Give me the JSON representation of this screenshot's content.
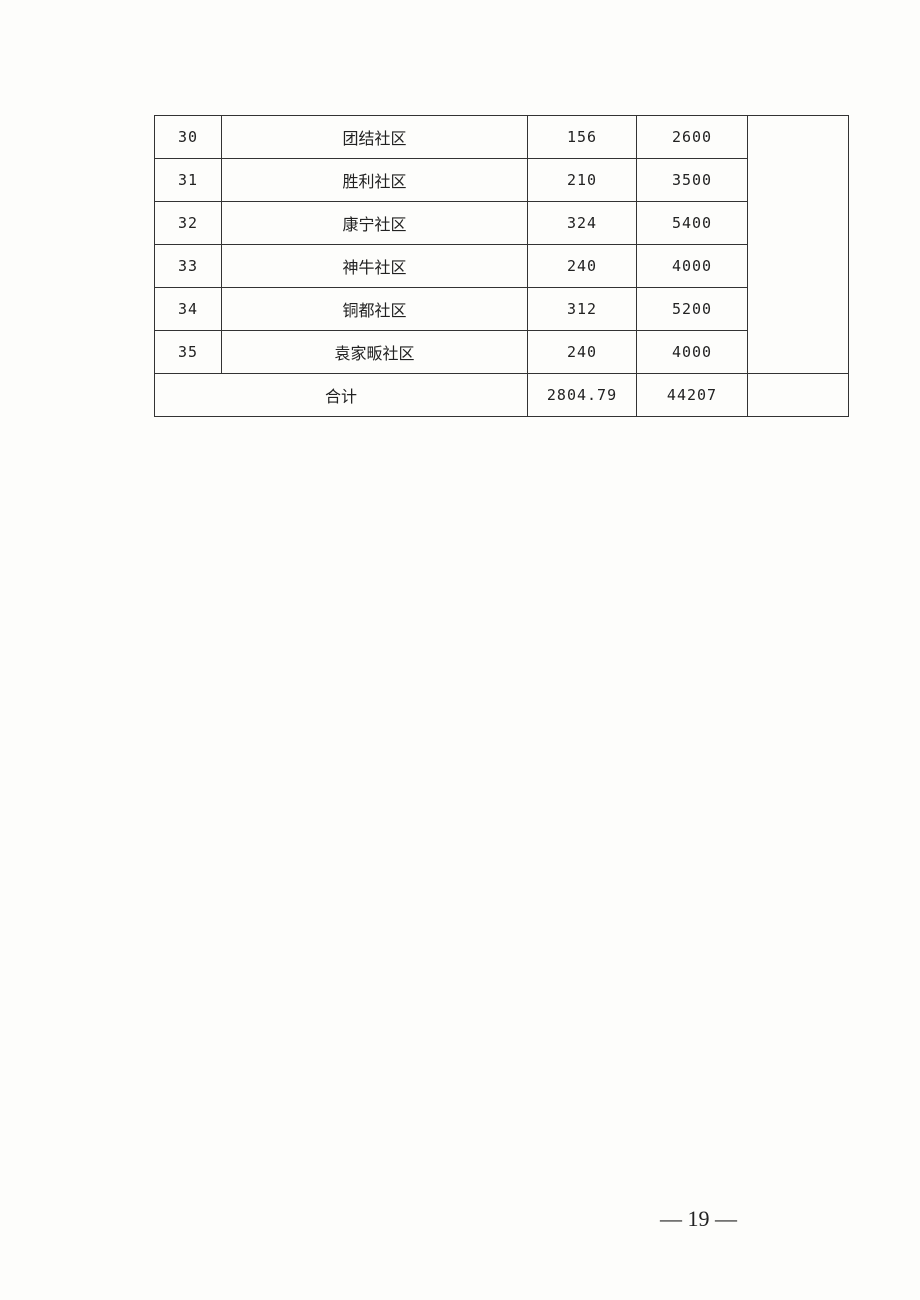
{
  "table": {
    "rows": [
      {
        "no": "30",
        "name": "团结社区",
        "a": "156",
        "b": "2600"
      },
      {
        "no": "31",
        "name": "胜利社区",
        "a": "210",
        "b": "3500"
      },
      {
        "no": "32",
        "name": "康宁社区",
        "a": "324",
        "b": "5400"
      },
      {
        "no": "33",
        "name": "神牛社区",
        "a": "240",
        "b": "4000"
      },
      {
        "no": "34",
        "name": "铜都社区",
        "a": "312",
        "b": "5200"
      },
      {
        "no": "35",
        "name": "袁家畈社区",
        "a": "240",
        "b": "4000"
      }
    ],
    "total": {
      "label": "合计",
      "a": "2804.79",
      "b": "44207"
    }
  },
  "page_number": "— 19 —"
}
